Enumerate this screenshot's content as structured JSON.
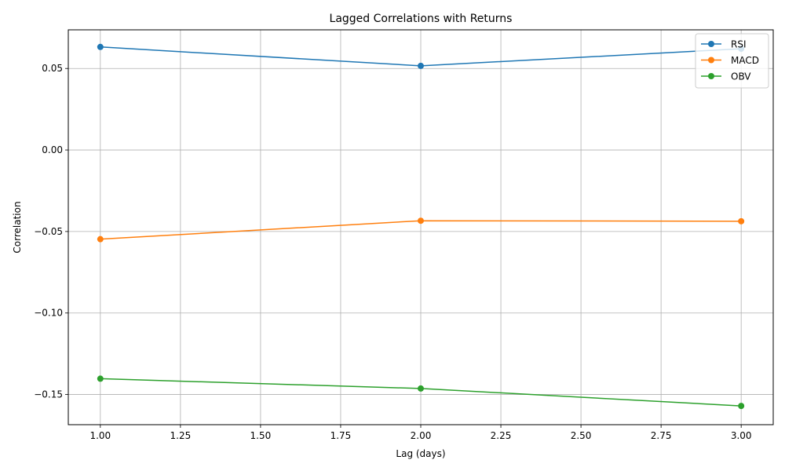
{
  "chart_data": {
    "type": "line",
    "title": "Lagged Correlations with Returns",
    "xlabel": "Lag (days)",
    "ylabel": "Correlation",
    "x": [
      1,
      2,
      3
    ],
    "series": [
      {
        "name": "RSI",
        "values": [
          0.0632,
          0.0516,
          0.0621
        ],
        "color": "#1f77b4"
      },
      {
        "name": "MACD",
        "values": [
          -0.0547,
          -0.0434,
          -0.0437
        ],
        "color": "#ff7f0e"
      },
      {
        "name": "OBV",
        "values": [
          -0.1403,
          -0.1463,
          -0.157
        ],
        "color": "#2ca02c"
      }
    ],
    "xlim": [
      0.9,
      3.1
    ],
    "ylim": [
      -0.1685,
      0.0737
    ],
    "xticks": [
      1.0,
      1.25,
      1.5,
      1.75,
      2.0,
      2.25,
      2.5,
      2.75,
      3.0
    ],
    "xtick_labels": [
      "1.00",
      "1.25",
      "1.50",
      "1.75",
      "2.00",
      "2.25",
      "2.50",
      "2.75",
      "3.00"
    ],
    "yticks": [
      0.05,
      0.0,
      -0.05,
      -0.1,
      -0.15
    ],
    "ytick_labels": [
      "0.05",
      "0.00",
      "−0.05",
      "−0.10",
      "−0.15"
    ],
    "grid": true,
    "legend_position": "top-right",
    "marker": "circle"
  }
}
